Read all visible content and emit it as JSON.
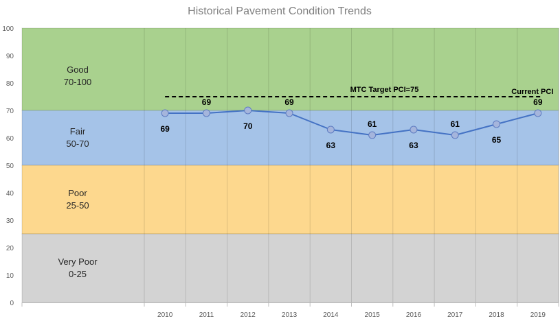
{
  "chart_data": {
    "type": "line",
    "title": "Historical Pavement Condition Trends",
    "xlabel": "",
    "ylabel": "",
    "categories": [
      "2010",
      "2011",
      "2012",
      "2013",
      "2014",
      "2015",
      "2016",
      "2017",
      "2018",
      "2019"
    ],
    "series": [
      {
        "values": [
          69,
          69,
          70,
          69,
          63,
          61,
          63,
          61,
          65,
          69
        ],
        "label_positions": [
          "below",
          "above",
          "below",
          "above",
          "below",
          "above",
          "below",
          "above",
          "below",
          "above"
        ],
        "color": "#4472C4",
        "marker": "circle",
        "marker_fill": "#A5B5DC"
      }
    ],
    "ylim": [
      0,
      100
    ],
    "yticks": [
      0,
      10,
      20,
      30,
      40,
      50,
      60,
      70,
      80,
      90,
      100
    ],
    "bands": [
      {
        "name": "Good",
        "range_label": "70-100",
        "from": 70,
        "to": 100,
        "color": "#A9D18E"
      },
      {
        "name": "Fair",
        "range_label": "50-70",
        "from": 50,
        "to": 70,
        "color": "#A5C3E8"
      },
      {
        "name": "Poor",
        "range_label": "25-50",
        "from": 25,
        "to": 50,
        "color": "#FDD88E"
      },
      {
        "name": "Very Poor",
        "range_label": "0-25",
        "from": 0,
        "to": 25,
        "color": "#D3D3D3"
      }
    ],
    "reference_line": {
      "label": "MTC Target PCI=75",
      "value": 75,
      "style": "dashed",
      "color": "#000000",
      "from_category": "2010",
      "to_category": "2019"
    },
    "annotation": {
      "text": "Current PCI",
      "category": "2019"
    },
    "grid": "vertical",
    "legend": "none"
  }
}
